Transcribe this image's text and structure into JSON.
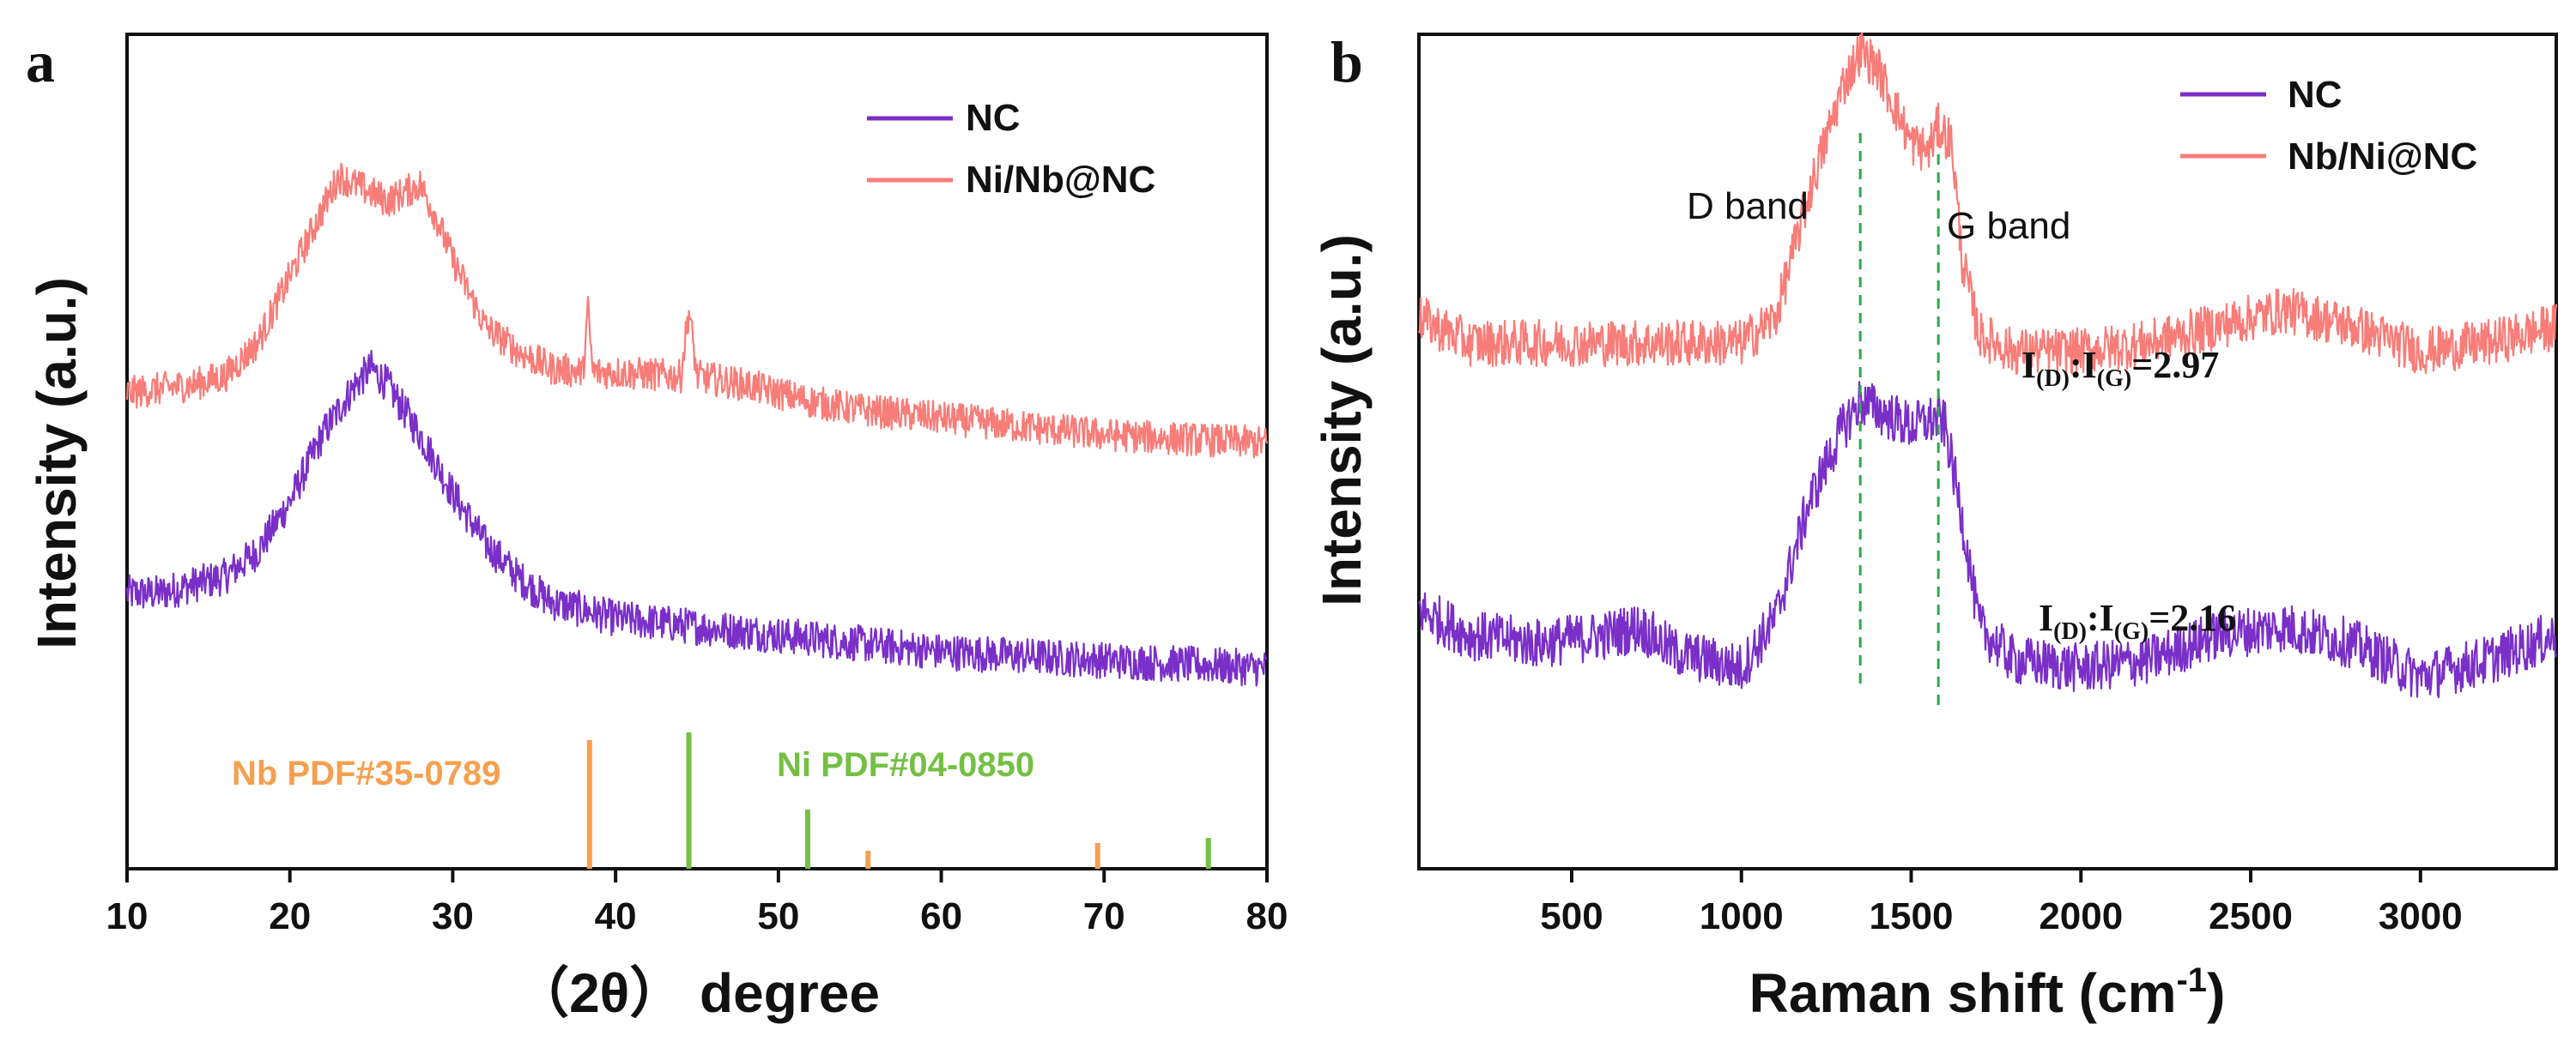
{
  "colors": {
    "nc": "#7a2fc8",
    "composite": "#f87c78",
    "nb_ref": "#f5a04f",
    "ni_ref": "#74c043",
    "guide": "#2ea84a",
    "axis": "#111111"
  },
  "chart_data": [
    {
      "panel": "a",
      "type": "line",
      "xlabel": "（2θ） degree",
      "ylabel": "Intensity (a.u.)",
      "xlim": [
        10,
        80
      ],
      "xticks": [
        "10",
        "20",
        "30",
        "40",
        "50",
        "60",
        "70",
        "80"
      ],
      "ylim": [
        0,
        10
      ],
      "grid": false,
      "legend_position": "top-right",
      "legend": [
        "NC",
        "Ni/Nb@NC"
      ],
      "series": [
        {
          "name": "NC",
          "color": "#7a2fc8",
          "x": [
            10,
            12,
            14,
            16,
            18,
            20,
            22,
            24,
            25,
            26,
            28,
            30,
            32,
            34,
            36,
            40,
            45,
            50,
            55,
            60,
            65,
            70,
            75,
            80
          ],
          "y": [
            3.3,
            3.3,
            3.4,
            3.5,
            3.8,
            4.4,
            5.2,
            5.8,
            6.0,
            5.8,
            5.2,
            4.5,
            3.9,
            3.5,
            3.2,
            3.0,
            2.9,
            2.8,
            2.7,
            2.6,
            2.55,
            2.5,
            2.45,
            2.4
          ],
          "noise": 0.22
        },
        {
          "name": "Ni/Nb@NC",
          "color": "#f87c78",
          "x": [
            10,
            12,
            14,
            16,
            18,
            20,
            22,
            23,
            24,
            26,
            28,
            29,
            30,
            32,
            34,
            36,
            38,
            38.3,
            38.6,
            40,
            44,
            44.5,
            45,
            48,
            52,
            55,
            60,
            65,
            70,
            75,
            80
          ],
          "y": [
            5.7,
            5.75,
            5.8,
            5.9,
            6.3,
            7.1,
            7.9,
            8.3,
            8.2,
            8.0,
            8.2,
            7.8,
            7.3,
            6.5,
            6.2,
            6.0,
            5.95,
            6.7,
            5.95,
            5.95,
            5.9,
            6.7,
            5.9,
            5.8,
            5.6,
            5.5,
            5.4,
            5.3,
            5.2,
            5.15,
            5.1
          ],
          "noise": 0.2
        }
      ],
      "reference_patterns": [
        {
          "name": "Nb PDF#35-0789",
          "color": "#f5a04f",
          "peaks": [
            {
              "x": 38.4,
              "h": 1.0
            },
            {
              "x": 55.5,
              "h": 0.14
            },
            {
              "x": 69.6,
              "h": 0.2
            }
          ]
        },
        {
          "name": "Ni PDF#04-0850",
          "color": "#74c043",
          "peaks": [
            {
              "x": 44.5,
              "h": 1.06
            },
            {
              "x": 51.8,
              "h": 0.46
            },
            {
              "x": 76.4,
              "h": 0.24
            }
          ]
        }
      ]
    },
    {
      "panel": "b",
      "type": "line",
      "xlabel": "Raman shift (cm",
      "xlabel_sup": "-1",
      "xlabel_close": ")",
      "ylabel": "Intensity (a.u.)",
      "xlim": [
        50,
        3400
      ],
      "xticks": [
        "500",
        "1000",
        "1500",
        "2000",
        "2500",
        "3000"
      ],
      "ylim": [
        0,
        10
      ],
      "grid": false,
      "legend_position": "top-right",
      "legend": [
        "NC",
        "Nb/Ni@NC"
      ],
      "series": [
        {
          "name": "NC",
          "color": "#7a2fc8",
          "x": [
            50,
            200,
            400,
            600,
            700,
            800,
            1000,
            1100,
            1200,
            1300,
            1350,
            1400,
            1500,
            1580,
            1600,
            1650,
            1700,
            1800,
            2000,
            2200,
            2400,
            2600,
            2800,
            3000,
            3200,
            3400
          ],
          "y": [
            3.1,
            2.8,
            2.7,
            2.8,
            2.9,
            2.6,
            2.4,
            3.0,
            4.4,
            5.3,
            5.6,
            5.5,
            5.3,
            5.4,
            5.3,
            4.2,
            2.9,
            2.5,
            2.4,
            2.5,
            2.8,
            2.9,
            2.7,
            2.3,
            2.5,
            2.8
          ],
          "noise": 0.3
        },
        {
          "name": "Nb/Ni@NC",
          "color": "#f87c78",
          "x": [
            50,
            200,
            400,
            600,
            800,
            1000,
            1100,
            1200,
            1300,
            1350,
            1400,
            1500,
            1550,
            1580,
            1620,
            1650,
            1700,
            1800,
            2000,
            2200,
            2400,
            2600,
            2800,
            3000,
            3200,
            3400
          ],
          "y": [
            6.6,
            6.3,
            6.3,
            6.3,
            6.3,
            6.3,
            6.6,
            8.1,
            9.4,
            9.8,
            9.6,
            8.7,
            8.6,
            8.9,
            8.7,
            7.3,
            6.4,
            6.2,
            6.2,
            6.3,
            6.5,
            6.7,
            6.5,
            6.2,
            6.3,
            6.5
          ],
          "noise": 0.28
        }
      ],
      "guides": [
        {
          "x": 1350,
          "label": "D band"
        },
        {
          "x": 1580,
          "label": "G band"
        }
      ],
      "annotations": [
        {
          "text": "I",
          "sub1": "(D)",
          "mid": ":I",
          "sub2": "(G)",
          "value": "=2.97",
          "series": "Nb/Ni@NC"
        },
        {
          "text": "I",
          "sub1": "(D)",
          "mid": ":I",
          "sub2": "(G)",
          "value": "=2.16",
          "series": "NC"
        }
      ]
    }
  ],
  "panel_labels": [
    "a",
    "b"
  ]
}
